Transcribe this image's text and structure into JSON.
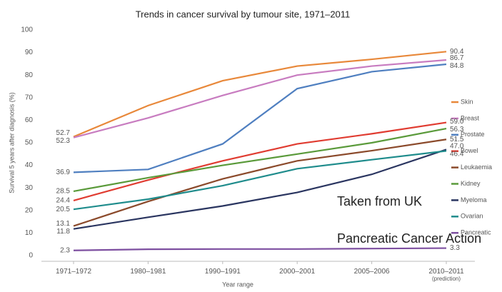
{
  "chart_data": {
    "type": "line",
    "title": "Trends in cancer survival by tumour site, 1971–2011",
    "xlabel": "Year range",
    "ylabel": "Survival 5 years after diagnosis (%)",
    "categories": [
      "1971–1972",
      "1980–1981",
      "1990–1991",
      "2000–2001",
      "2005–2006",
      "2010–2011\n(prediction)"
    ],
    "ylim": [
      0,
      100
    ],
    "yticks": [
      0,
      10,
      20,
      30,
      40,
      50,
      60,
      70,
      80,
      90,
      100
    ],
    "grid": false,
    "legend": "right",
    "series": [
      {
        "name": "Skin",
        "color": "#e8883a",
        "values": [
          52.7,
          66.5,
          77.5,
          84,
          87,
          90.4
        ],
        "value_labels": [
          "52.7",
          null,
          null,
          null,
          null,
          "90.4"
        ]
      },
      {
        "name": "Breast",
        "color": "#c87cc0",
        "values": [
          52.3,
          61,
          71,
          80,
          84,
          86.7
        ],
        "value_labels": [
          "52.3",
          null,
          null,
          null,
          null,
          "86.7"
        ]
      },
      {
        "name": "Prostate",
        "color": "#4f7fc0",
        "values": [
          36.9,
          38.2,
          49.5,
          74,
          81.5,
          84.8
        ],
        "value_labels": [
          "36.9",
          null,
          null,
          null,
          null,
          "84.8"
        ]
      },
      {
        "name": "Bowel",
        "color": "#e03c31",
        "values": [
          24.4,
          33.5,
          42,
          49.5,
          54,
          59.0
        ],
        "value_labels": [
          "24.4",
          null,
          null,
          null,
          null,
          "59.0"
        ]
      },
      {
        "name": "Leukaemia",
        "color": "#8b4a2b",
        "values": [
          13.1,
          24,
          34,
          42,
          46.5,
          51.5
        ],
        "value_labels": [
          "13.1",
          null,
          null,
          null,
          null,
          "51.5"
        ]
      },
      {
        "name": "Kidney",
        "color": "#5a9a3a",
        "values": [
          28.5,
          34.5,
          40,
          45,
          50,
          56.3
        ],
        "value_labels": [
          "28.5",
          null,
          null,
          null,
          null,
          "56.3"
        ]
      },
      {
        "name": "Myeloma",
        "color": "#2a3560",
        "values": [
          11.8,
          17,
          22,
          28,
          36,
          47.0
        ],
        "value_labels": [
          "11.8",
          null,
          null,
          null,
          null,
          "47.0"
        ]
      },
      {
        "name": "Ovarian",
        "color": "#1f8c8c",
        "values": [
          20.5,
          25,
          31,
          38.5,
          42.5,
          46.4
        ],
        "value_labels": [
          "20.5",
          null,
          null,
          null,
          null,
          "46.4"
        ]
      },
      {
        "name": "Pancreatic",
        "color": "#7d4fa0",
        "values": [
          2.3,
          2.8,
          2.9,
          2.9,
          3.1,
          3.3
        ],
        "value_labels": [
          "2.3",
          null,
          null,
          null,
          null,
          "3.3"
        ]
      }
    ],
    "annotation": [
      "Taken from UK",
      "Pancreatic Cancer Action"
    ]
  }
}
